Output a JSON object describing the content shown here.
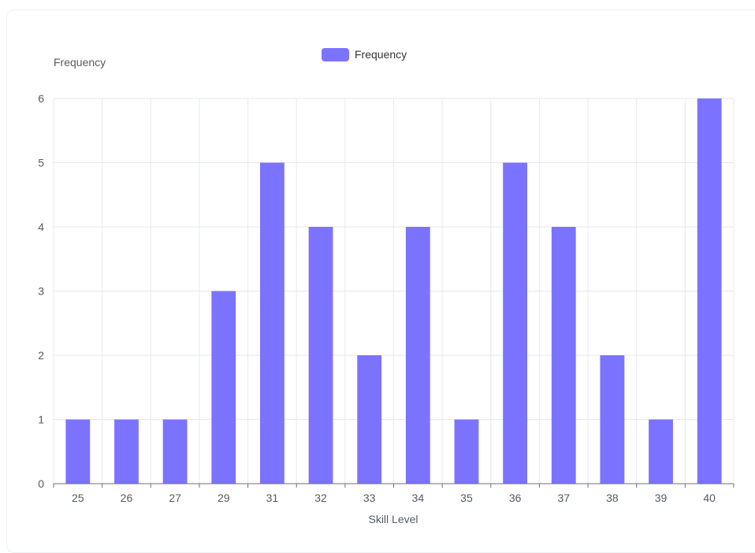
{
  "chart_data": {
    "type": "bar",
    "categories": [
      "25",
      "26",
      "27",
      "29",
      "31",
      "32",
      "33",
      "34",
      "35",
      "36",
      "37",
      "38",
      "39",
      "40"
    ],
    "series": [
      {
        "name": "Frequency",
        "values": [
          1,
          1,
          1,
          3,
          5,
          4,
          2,
          4,
          1,
          5,
          4,
          2,
          1,
          6
        ]
      }
    ],
    "xlabel": "Skill Level",
    "ylabel": "Frequency",
    "ylim": [
      0,
      6
    ],
    "yticks": [
      0,
      1,
      2,
      3,
      4,
      5,
      6
    ],
    "grid": true,
    "legend": "top-center",
    "colors": {
      "bar": "#7b73ff",
      "grid": "#e6e8f2",
      "axis": "#6e7079"
    }
  }
}
